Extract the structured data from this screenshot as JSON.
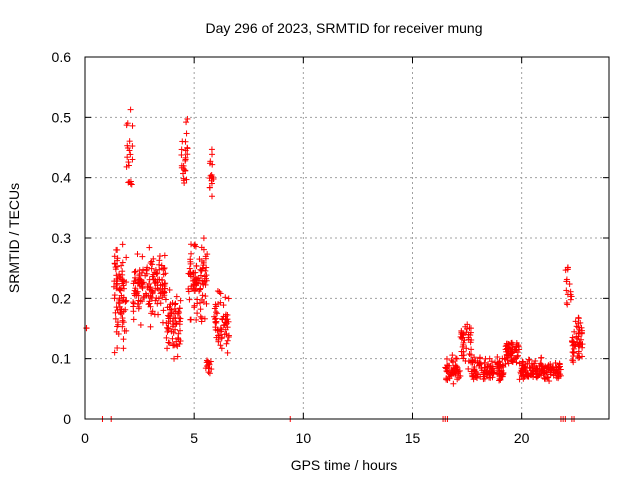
{
  "chart_data": {
    "type": "scatter",
    "title": "Day 296 of 2023, SRMTID for receiver mung",
    "xlabel": "GPS time / hours",
    "ylabel": "SRMTID / TECUs",
    "xlim": [
      0,
      24
    ],
    "ylim": [
      0,
      0.6
    ],
    "xticks": [
      0,
      5,
      10,
      15,
      20
    ],
    "yticks": [
      0,
      0.1,
      0.2,
      0.3,
      0.4,
      0.5,
      0.6
    ],
    "xtick_labels": [
      "0",
      "5",
      "10",
      "15",
      "20"
    ],
    "ytick_labels": [
      "0",
      "0.1",
      "0.2",
      "0.3",
      "0.4",
      "0.5",
      "0.6"
    ],
    "grid": true,
    "marker": "+",
    "color": "#ff0000",
    "series": [
      {
        "name": "SRMTID",
        "clusters": [
          {
            "x_range": [
              0.0,
              0.1
            ],
            "y_center": 0.15,
            "y_spread": 0.003,
            "count": 3
          },
          {
            "x_range": [
              1.3,
              1.9
            ],
            "y_center": 0.2,
            "y_spread": 0.12,
            "count": 80
          },
          {
            "x_range": [
              1.9,
              2.2
            ],
            "y_center": 0.45,
            "y_spread": 0.09,
            "count": 20
          },
          {
            "x_range": [
              2.2,
              3.7
            ],
            "y_center": 0.22,
            "y_spread": 0.08,
            "count": 140
          },
          {
            "x_range": [
              3.7,
              4.4
            ],
            "y_center": 0.16,
            "y_spread": 0.07,
            "count": 70
          },
          {
            "x_range": [
              4.4,
              4.7
            ],
            "y_center": 0.44,
            "y_spread": 0.09,
            "count": 25
          },
          {
            "x_range": [
              4.7,
              5.6
            ],
            "y_center": 0.23,
            "y_spread": 0.09,
            "count": 90
          },
          {
            "x_range": [
              5.5,
              5.8
            ],
            "y_center": 0.09,
            "y_spread": 0.02,
            "count": 15
          },
          {
            "x_range": [
              5.7,
              5.9
            ],
            "y_center": 0.4,
            "y_spread": 0.06,
            "count": 15
          },
          {
            "x_range": [
              5.9,
              6.6
            ],
            "y_center": 0.16,
            "y_spread": 0.07,
            "count": 60
          },
          {
            "x_range": [
              16.5,
              17.2
            ],
            "y_center": 0.08,
            "y_spread": 0.03,
            "count": 50
          },
          {
            "x_range": [
              17.2,
              17.7
            ],
            "y_center": 0.12,
            "y_spread": 0.06,
            "count": 40
          },
          {
            "x_range": [
              17.7,
              19.2
            ],
            "y_center": 0.08,
            "y_spread": 0.03,
            "count": 120
          },
          {
            "x_range": [
              19.2,
              19.9
            ],
            "y_center": 0.11,
            "y_spread": 0.03,
            "count": 60
          },
          {
            "x_range": [
              19.9,
              21.8
            ],
            "y_center": 0.08,
            "y_spread": 0.025,
            "count": 150
          },
          {
            "x_range": [
              22.0,
              22.3
            ],
            "y_center": 0.22,
            "y_spread": 0.06,
            "count": 15
          },
          {
            "x_range": [
              22.3,
              22.8
            ],
            "y_center": 0.13,
            "y_spread": 0.05,
            "count": 55
          }
        ],
        "zero_points_x": [
          0.8,
          1.2,
          9.4,
          16.4,
          16.5,
          16.6,
          21.8,
          21.9,
          22.0,
          22.3,
          22.4
        ]
      }
    ]
  }
}
